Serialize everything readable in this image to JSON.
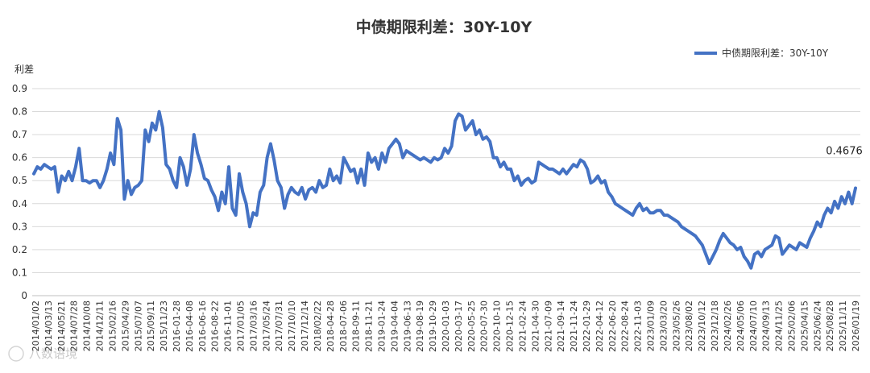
{
  "chart_data": {
    "type": "line",
    "title": "中债期限利差：30Y-10Y",
    "ylabel": "利差",
    "xlabel": "",
    "ylim": [
      0,
      0.9
    ],
    "yticks": [
      "0",
      "0.1",
      "0.2",
      "0.3",
      "0.4",
      "0.5",
      "0.6",
      "0.7",
      "0.8",
      "0.9"
    ],
    "grid": true,
    "legend_position": "top-right",
    "series_color": "#4472c4",
    "x_labels": [
      "2014/01/02",
      "2014/03/13",
      "2014/05/21",
      "2014/07/28",
      "2014/10/08",
      "2014/12/11",
      "2015/02/16",
      "2015/04/29",
      "2015/07/07",
      "2015/09/11",
      "2015/11/23",
      "2016-01-28",
      "2016-04-08",
      "2016-06-16",
      "2016-08-22",
      "2016-11-01",
      "2017/01/05",
      "2017/03/16",
      "2017/05/24",
      "2017/07/31",
      "2017/10/10",
      "2017/12/14",
      "2018/02/22",
      "2018-04-28",
      "2018-07-06",
      "2018-09-11",
      "2018-11-21",
      "2019-01-24",
      "2019-04-04",
      "2019-06-13",
      "2019-08-19",
      "2019-10-29",
      "2020-01-03",
      "2020-03-17",
      "2020-05-25",
      "2020-07-30",
      "2020-10-10",
      "2020-12-15",
      "2021-02-24",
      "2021-04-30",
      "2021-07-09",
      "2021-09-14",
      "2021-11-24",
      "2022-01-29",
      "2022-04-12",
      "2022-06-20",
      "2022-08-24",
      "2022-11-03",
      "2023/01/09",
      "2023/03/20",
      "2023/05/26",
      "2023/08/02",
      "2023/10/12",
      "2023/12/18",
      "2024/02/26",
      "2024/05/06",
      "2024/07/10",
      "2024/09/13",
      "2024/11/25",
      "2025/02/06",
      "2025/04/15",
      "2025/06/24",
      "2025/08/28",
      "2025/11/11",
      "2026/01/19"
    ],
    "series": [
      {
        "name": "中债期限利差：30Y-10Y",
        "end_label": "0.4676",
        "values": [
          0.53,
          0.56,
          0.55,
          0.57,
          0.56,
          0.55,
          0.56,
          0.45,
          0.52,
          0.5,
          0.54,
          0.5,
          0.56,
          0.64,
          0.5,
          0.5,
          0.49,
          0.5,
          0.5,
          0.47,
          0.5,
          0.55,
          0.62,
          0.57,
          0.77,
          0.72,
          0.42,
          0.5,
          0.44,
          0.47,
          0.48,
          0.5,
          0.72,
          0.67,
          0.75,
          0.72,
          0.8,
          0.73,
          0.57,
          0.55,
          0.5,
          0.47,
          0.6,
          0.56,
          0.48,
          0.55,
          0.7,
          0.62,
          0.57,
          0.51,
          0.5,
          0.46,
          0.43,
          0.37,
          0.45,
          0.4,
          0.56,
          0.38,
          0.35,
          0.53,
          0.45,
          0.4,
          0.3,
          0.36,
          0.35,
          0.45,
          0.48,
          0.6,
          0.66,
          0.59,
          0.5,
          0.47,
          0.38,
          0.44,
          0.47,
          0.45,
          0.44,
          0.47,
          0.42,
          0.46,
          0.47,
          0.45,
          0.5,
          0.47,
          0.48,
          0.55,
          0.5,
          0.52,
          0.49,
          0.6,
          0.57,
          0.54,
          0.55,
          0.49,
          0.55,
          0.48,
          0.62,
          0.58,
          0.6,
          0.55,
          0.62,
          0.58,
          0.64,
          0.66,
          0.68,
          0.66,
          0.6,
          0.63,
          0.62,
          0.61,
          0.6,
          0.59,
          0.6,
          0.59,
          0.58,
          0.6,
          0.59,
          0.6,
          0.64,
          0.62,
          0.65,
          0.76,
          0.79,
          0.78,
          0.72,
          0.74,
          0.76,
          0.7,
          0.72,
          0.68,
          0.69,
          0.67,
          0.6,
          0.6,
          0.56,
          0.58,
          0.55,
          0.55,
          0.5,
          0.52,
          0.48,
          0.5,
          0.51,
          0.49,
          0.5,
          0.58,
          0.57,
          0.56,
          0.55,
          0.55,
          0.54,
          0.53,
          0.55,
          0.53,
          0.55,
          0.57,
          0.56,
          0.59,
          0.58,
          0.55,
          0.49,
          0.5,
          0.52,
          0.49,
          0.5,
          0.45,
          0.43,
          0.4,
          0.39,
          0.38,
          0.37,
          0.36,
          0.35,
          0.38,
          0.4,
          0.37,
          0.38,
          0.36,
          0.36,
          0.37,
          0.37,
          0.35,
          0.35,
          0.34,
          0.33,
          0.32,
          0.3,
          0.29,
          0.28,
          0.27,
          0.26,
          0.24,
          0.22,
          0.18,
          0.14,
          0.17,
          0.2,
          0.24,
          0.27,
          0.25,
          0.23,
          0.22,
          0.2,
          0.21,
          0.17,
          0.15,
          0.12,
          0.18,
          0.19,
          0.17,
          0.2,
          0.21,
          0.22,
          0.26,
          0.25,
          0.18,
          0.2,
          0.22,
          0.21,
          0.2,
          0.23,
          0.22,
          0.21,
          0.25,
          0.28,
          0.32,
          0.3,
          0.35,
          0.38,
          0.36,
          0.41,
          0.38,
          0.43,
          0.4,
          0.45,
          0.4,
          0.4676
        ]
      }
    ]
  },
  "watermark": "八数语境"
}
